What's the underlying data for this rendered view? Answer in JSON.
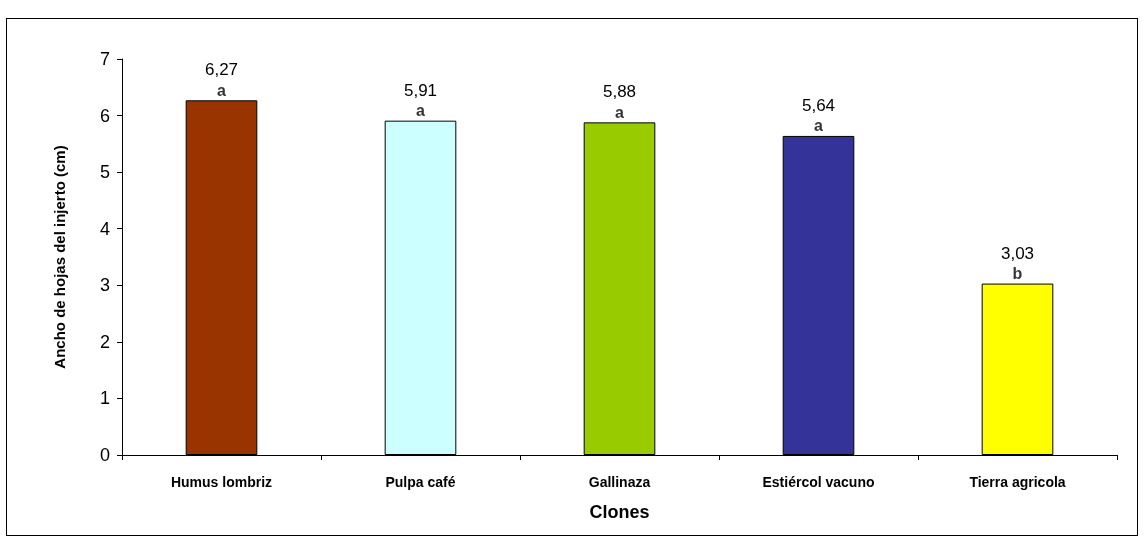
{
  "chart_data": {
    "type": "bar",
    "xlabel": "Clones",
    "ylabel": "Ancho de hojas del injerto (cm)",
    "categories": [
      "Humus lombriz",
      "Pulpa café",
      "Gallinaza",
      "Estiércol vacuno",
      "Tierra agricola"
    ],
    "values": [
      6.27,
      5.91,
      5.88,
      5.64,
      3.03
    ],
    "colors": [
      "#993300",
      "#ccffff",
      "#99cc00",
      "#333399",
      "#ffff00"
    ],
    "value_labels": [
      "6,27",
      "5,91",
      "5,88",
      "5,64",
      "3,03"
    ],
    "annotations": [
      {
        "text": "a",
        "x": "Humus lombriz",
        "y": 6.27
      },
      {
        "text": "a",
        "x": "Pulpa café",
        "y": 5.91
      },
      {
        "text": "a",
        "x": "Gallinaza",
        "y": 5.88
      },
      {
        "text": "a",
        "x": "Estiércol vacuno",
        "y": 5.64
      },
      {
        "text": "b",
        "x": "Tierra agricola",
        "y": 3.03
      }
    ],
    "ylim": [
      0,
      7
    ],
    "yticks": [
      0,
      1,
      2,
      3,
      4,
      5,
      6,
      7
    ],
    "grid": false
  }
}
